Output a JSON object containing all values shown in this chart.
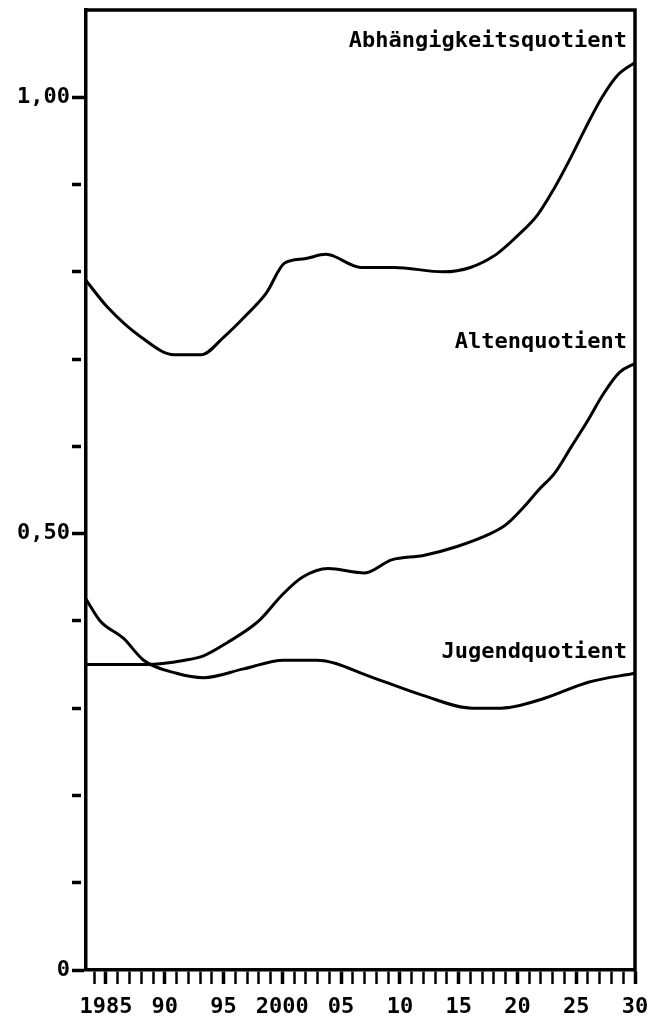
{
  "chart_data": {
    "type": "line",
    "xlim": [
      1983.3,
      2030
    ],
    "xticks": [
      {
        "value": 1984,
        "label": null
      },
      {
        "value": 1985,
        "label": "1985"
      },
      {
        "value": 1986,
        "label": null
      },
      {
        "value": 1987,
        "label": null
      },
      {
        "value": 1988,
        "label": null
      },
      {
        "value": 1989,
        "label": null
      },
      {
        "value": 1990,
        "label": "90"
      },
      {
        "value": 1991,
        "label": null
      },
      {
        "value": 1992,
        "label": null
      },
      {
        "value": 1993,
        "label": null
      },
      {
        "value": 1994,
        "label": null
      },
      {
        "value": 1995,
        "label": "95"
      },
      {
        "value": 1996,
        "label": null
      },
      {
        "value": 1997,
        "label": null
      },
      {
        "value": 1998,
        "label": null
      },
      {
        "value": 1999,
        "label": null
      },
      {
        "value": 2000,
        "label": "2000"
      },
      {
        "value": 2001,
        "label": null
      },
      {
        "value": 2002,
        "label": null
      },
      {
        "value": 2003,
        "label": null
      },
      {
        "value": 2004,
        "label": null
      },
      {
        "value": 2005,
        "label": "05"
      },
      {
        "value": 2006,
        "label": null
      },
      {
        "value": 2007,
        "label": null
      },
      {
        "value": 2008,
        "label": null
      },
      {
        "value": 2009,
        "label": null
      },
      {
        "value": 2010,
        "label": "10"
      },
      {
        "value": 2011,
        "label": null
      },
      {
        "value": 2012,
        "label": null
      },
      {
        "value": 2013,
        "label": null
      },
      {
        "value": 2014,
        "label": null
      },
      {
        "value": 2015,
        "label": "15"
      },
      {
        "value": 2016,
        "label": null
      },
      {
        "value": 2017,
        "label": null
      },
      {
        "value": 2018,
        "label": null
      },
      {
        "value": 2019,
        "label": null
      },
      {
        "value": 2020,
        "label": "20"
      },
      {
        "value": 2021,
        "label": null
      },
      {
        "value": 2022,
        "label": null
      },
      {
        "value": 2023,
        "label": null
      },
      {
        "value": 2024,
        "label": null
      },
      {
        "value": 2025,
        "label": "25"
      },
      {
        "value": 2026,
        "label": null
      },
      {
        "value": 2027,
        "label": null
      },
      {
        "value": 2028,
        "label": null
      },
      {
        "value": 2029,
        "label": null
      },
      {
        "value": 2030,
        "label": "30"
      }
    ],
    "ylim": [
      0,
      1.1
    ],
    "yticks": [
      0,
      {
        "value": 0.1,
        "label": null
      },
      {
        "value": 0.2,
        "label": null
      },
      {
        "value": 0.3,
        "label": null
      },
      {
        "value": 0.4,
        "label": null
      },
      {
        "value": 0.5,
        "label": "0,50"
      },
      {
        "value": 0.6,
        "label": null
      },
      {
        "value": 0.7,
        "label": null
      },
      {
        "value": 0.8,
        "label": null
      },
      {
        "value": 0.9,
        "label": null
      },
      {
        "value": 1.0,
        "label": "1,00"
      }
    ],
    "series": [
      {
        "name": "Abhängigkeitsquotient",
        "color": "#000000",
        "x": [
          1983.3,
          1985.1,
          1988.0,
          1990.8,
          1993.1,
          1995.0,
          1996.9,
          1998.6,
          2000.2,
          2001.9,
          2003.7,
          2006.7,
          2009.5,
          2013.7,
          2016.0,
          2018.2,
          2019.9,
          2021.7,
          2023.1,
          2024.5,
          2025.8,
          2027.2,
          2028.5,
          2030
        ],
        "values": [
          0.79,
          0.76,
          0.725,
          0.705,
          0.705,
          0.725,
          0.75,
          0.775,
          0.81,
          0.815,
          0.82,
          0.805,
          0.805,
          0.8,
          0.805,
          0.82,
          0.84,
          0.865,
          0.895,
          0.93,
          0.965,
          1.0,
          1.025,
          1.04
        ]
      },
      {
        "name": "Altenquotient",
        "color": "#000000",
        "x": [
          1983.3,
          1988.5,
          1991.7,
          1993.3,
          1995.3,
          1998.0,
          2000.0,
          2001.7,
          2003.9,
          2007.0,
          2009.3,
          2012.0,
          2014.8,
          2017.7,
          2019.0,
          2020.5,
          2021.8,
          2023.2,
          2024.6,
          2026.0,
          2027.3,
          2028.7,
          2030
        ],
        "values": [
          0.35,
          0.35,
          0.355,
          0.36,
          0.375,
          0.4,
          0.43,
          0.45,
          0.46,
          0.455,
          0.47,
          0.475,
          0.485,
          0.5,
          0.51,
          0.53,
          0.55,
          0.57,
          0.6,
          0.63,
          0.66,
          0.685,
          0.695
        ]
      },
      {
        "name": "Jugendquotient",
        "color": "#000000",
        "x": [
          1983.3,
          1984.5,
          1986.5,
          1988.2,
          1991.0,
          1993.3,
          1996.7,
          2000.1,
          2002.9,
          2007.7,
          2011.9,
          2016.2,
          2018.6,
          2022.0,
          2026.1,
          2030
        ],
        "values": [
          0.425,
          0.4,
          0.38,
          0.355,
          0.34,
          0.335,
          0.345,
          0.355,
          0.355,
          0.335,
          0.315,
          0.3,
          0.3,
          0.31,
          0.33,
          0.34
        ]
      }
    ]
  }
}
